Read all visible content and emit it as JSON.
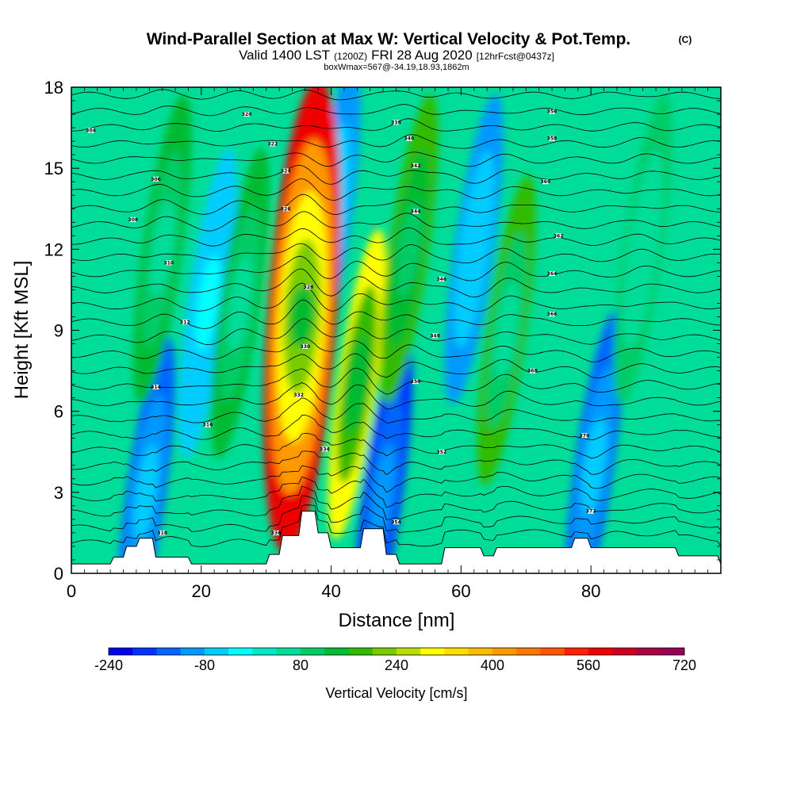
{
  "chart_data": {
    "type": "heatmap",
    "title": "Wind-Parallel Section at Max W: Vertical Velocity & Pot.Temp.",
    "title_mark": "(C)",
    "subtitle_main": "Valid 1400 LST",
    "subtitle_utc": "(1200Z)",
    "subtitle_date": "FRI 28 Aug 2020",
    "subtitle_fcst": "[12hrFcst@0437z]",
    "box_info": "boxWmax=567@-34.19,18.93,1862m",
    "xlabel": "Distance [nm]",
    "ylabel": "Height [Kft MSL]",
    "xlim": [
      0,
      100
    ],
    "ylim": [
      0,
      18
    ],
    "xticks": [
      "0",
      "20",
      "40",
      "60",
      "80"
    ],
    "xtick_values": [
      0,
      20,
      40,
      60,
      80
    ],
    "yticks": [
      "0",
      "3",
      "6",
      "9",
      "12",
      "15",
      "18"
    ],
    "ytick_values": [
      0,
      3,
      6,
      9,
      12,
      15,
      18
    ],
    "colorbar": {
      "label": "Vertical Velocity [cm/s]",
      "tick_labels": [
        "-240",
        "-80",
        "80",
        "240",
        "400",
        "560",
        "720"
      ],
      "tick_values": [
        -240,
        -80,
        80,
        240,
        400,
        560,
        720
      ],
      "colors": [
        "#0000ee",
        "#0033ff",
        "#0066ff",
        "#0099ff",
        "#00ccff",
        "#00ffff",
        "#00e8c8",
        "#00dd99",
        "#00cc66",
        "#00bb33",
        "#33bb00",
        "#77cc00",
        "#bbdd00",
        "#ffff00",
        "#ffdd00",
        "#ffbb00",
        "#ff9900",
        "#ff7700",
        "#ff5500",
        "#ff2200",
        "#ee0000",
        "#cc0022",
        "#aa0044",
        "#990055"
      ]
    },
    "updrafts_cm_s": [
      {
        "x": 35.5,
        "z": 9.5,
        "w": 567
      },
      {
        "x": 44,
        "z": 7,
        "w": 280
      },
      {
        "x": 52,
        "z": 12,
        "w": 190
      },
      {
        "x": 67,
        "z": 9,
        "w": 170
      },
      {
        "x": 14,
        "z": 12,
        "w": 120
      },
      {
        "x": 26,
        "z": 10,
        "w": 130
      },
      {
        "x": 88,
        "z": 12,
        "w": 90
      }
    ],
    "downdrafts_cm_s": [
      {
        "x": 48,
        "z": 3,
        "w": -200
      },
      {
        "x": 11.5,
        "z": 3,
        "w": -130
      },
      {
        "x": 80.5,
        "z": 4,
        "w": -150
      },
      {
        "x": 40,
        "z": 13,
        "w": -110
      },
      {
        "x": 21,
        "z": 10,
        "w": -70
      },
      {
        "x": 62,
        "z": 12,
        "w": -90
      }
    ],
    "terrain_kft": {
      "x": [
        0,
        6,
        6.5,
        8,
        8.5,
        10,
        10.5,
        12.5,
        13,
        18,
        18.5,
        30,
        30.5,
        32,
        32.5,
        35,
        35.5,
        37.5,
        38,
        39.5,
        40,
        44.5,
        45,
        48,
        48.5,
        50,
        50.5,
        57,
        57.5,
        63,
        63.5,
        65,
        65.5,
        71,
        71.5,
        77,
        77.5,
        79.5,
        80,
        93,
        93.5,
        99.5,
        100
      ],
      "z": [
        0.35,
        0.35,
        0.6,
        0.6,
        1.0,
        1.0,
        1.3,
        1.3,
        0.6,
        0.6,
        0.35,
        0.35,
        0.7,
        0.7,
        1.4,
        1.4,
        2.3,
        2.3,
        1.5,
        1.5,
        0.95,
        0.95,
        1.65,
        1.65,
        0.7,
        0.7,
        0.35,
        0.35,
        0.95,
        0.95,
        0.65,
        0.65,
        0.95,
        0.95,
        0.95,
        0.95,
        1.3,
        1.3,
        0.95,
        0.95,
        0.65,
        0.65,
        0.35
      ]
    },
    "contour_labels": [
      {
        "text": "304",
        "x": 3,
        "z": 16.4
      },
      {
        "text": "306",
        "x": 13,
        "z": 14.6
      },
      {
        "text": "308",
        "x": 9.5,
        "z": 13.1
      },
      {
        "text": "310",
        "x": 15,
        "z": 11.5
      },
      {
        "text": "312",
        "x": 17.5,
        "z": 9.3
      },
      {
        "text": "314",
        "x": 13,
        "z": 6.9
      },
      {
        "text": "316",
        "x": 21,
        "z": 5.5
      },
      {
        "text": "318",
        "x": 14,
        "z": 1.5
      },
      {
        "text": "320",
        "x": 27,
        "z": 17
      },
      {
        "text": "322",
        "x": 31,
        "z": 15.9
      },
      {
        "text": "324",
        "x": 33,
        "z": 14.9
      },
      {
        "text": "326",
        "x": 33,
        "z": 13.5
      },
      {
        "text": "328",
        "x": 36.5,
        "z": 10.6
      },
      {
        "text": "330",
        "x": 36,
        "z": 8.4
      },
      {
        "text": "332",
        "x": 35,
        "z": 6.6
      },
      {
        "text": "334",
        "x": 39,
        "z": 4.6
      },
      {
        "text": "336",
        "x": 31.5,
        "z": 1.5
      },
      {
        "text": "338",
        "x": 50,
        "z": 16.7
      },
      {
        "text": "340",
        "x": 52,
        "z": 16.1
      },
      {
        "text": "342",
        "x": 53,
        "z": 15.1
      },
      {
        "text": "344",
        "x": 53,
        "z": 13.4
      },
      {
        "text": "346",
        "x": 57,
        "z": 10.9
      },
      {
        "text": "348",
        "x": 56,
        "z": 8.8
      },
      {
        "text": "350",
        "x": 53,
        "z": 7.1
      },
      {
        "text": "352",
        "x": 57,
        "z": 4.5
      },
      {
        "text": "354",
        "x": 50,
        "z": 1.9
      },
      {
        "text": "356",
        "x": 74,
        "z": 17.1
      },
      {
        "text": "358",
        "x": 74,
        "z": 16.1
      },
      {
        "text": "360",
        "x": 73,
        "z": 14.5
      },
      {
        "text": "362",
        "x": 75,
        "z": 12.5
      },
      {
        "text": "364",
        "x": 74,
        "z": 11.1
      },
      {
        "text": "366",
        "x": 74,
        "z": 9.6
      },
      {
        "text": "368",
        "x": 71,
        "z": 7.5
      },
      {
        "text": "370",
        "x": 79,
        "z": 5.1
      },
      {
        "text": "372",
        "x": 80,
        "z": 2.3
      }
    ]
  }
}
